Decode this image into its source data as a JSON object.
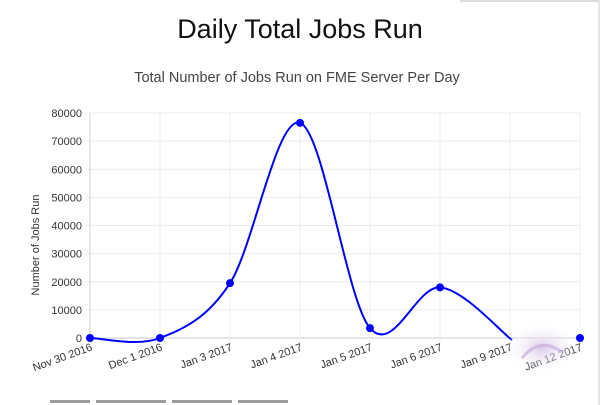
{
  "page": {
    "title": "Daily Total Jobs Run"
  },
  "chart_data": {
    "type": "line",
    "title": "Total Number of Jobs Run on FME Server Per Day",
    "ylabel": "Number of Jobs Run",
    "xlabel": "",
    "x": [
      "Nov 30 2016",
      "Dec  1 2016",
      "Jan  3 2017",
      "Jan  4 2017",
      "Jan  5 2017",
      "Jan  6 2017",
      "Jan  9 2017",
      "Jan 12 2017"
    ],
    "x_tick_labels": [
      "Nov 30 2016",
      "Dec  1 2016",
      "Jan  3 2017",
      "Jan  4 2017",
      "Jan  5 2017",
      "Jan  6 2017",
      "Jan  9 2017",
      "Jan 12 2017"
    ],
    "series": [
      {
        "values": [
          0,
          0,
          19500,
          76500,
          3500,
          18000,
          null,
          0
        ]
      }
    ],
    "ylim": [
      0,
      80000
    ],
    "yticks": [
      0,
      10000,
      20000,
      30000,
      40000,
      50000,
      60000,
      70000,
      80000
    ],
    "grid": true,
    "line_color": "#0000ff",
    "smooth": true
  }
}
